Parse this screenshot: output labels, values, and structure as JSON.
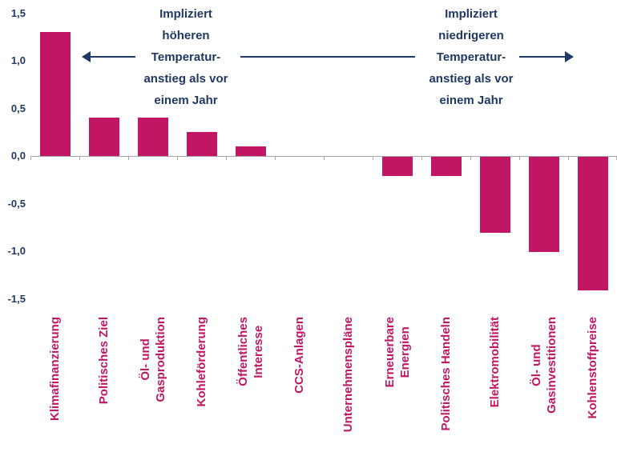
{
  "chart_data": {
    "type": "bar",
    "title": "",
    "categories": [
      "Klimafinanzierung",
      "Politisches Ziel",
      "Öl- und\nGasproduktion",
      "Kohleförderung",
      "Öffentliches\nInteresse",
      "CCS-Anlagen",
      "Unternehmenspläne",
      "Erneuerbare\nEnergien",
      "Politisches Handeln",
      "Elektromobilität",
      "Öl- und\nGasinvestitionen",
      "Kohlenstoffpreise"
    ],
    "values": [
      1.3,
      0.4,
      0.4,
      0.25,
      0.1,
      0,
      0,
      -0.2,
      -0.2,
      -0.8,
      -1.0,
      -1.4
    ],
    "ylim": [
      -1.5,
      1.5
    ],
    "ytick_step": 0.5,
    "ytick_labels": [
      "1,5",
      "1,0",
      "0,5",
      "0,0",
      "-0,5",
      "-1,0",
      "-1,5"
    ],
    "grid": "off",
    "legend": "none",
    "annotations": {
      "left": "Impliziert\nhöheren\nTemperatur-\nanstieg als vor\neinem Jahr",
      "right": "Impliziert\nniedrigeren\nTemperatur-\nanstieg als vor\neinem Jahr"
    },
    "colors": {
      "bar": "#c01663",
      "annotation": "#1f3864",
      "axis": "#a6a6a6",
      "ytick_text": "#1f3864",
      "xtick_text": "#c01663",
      "background": "#ffffff"
    }
  }
}
